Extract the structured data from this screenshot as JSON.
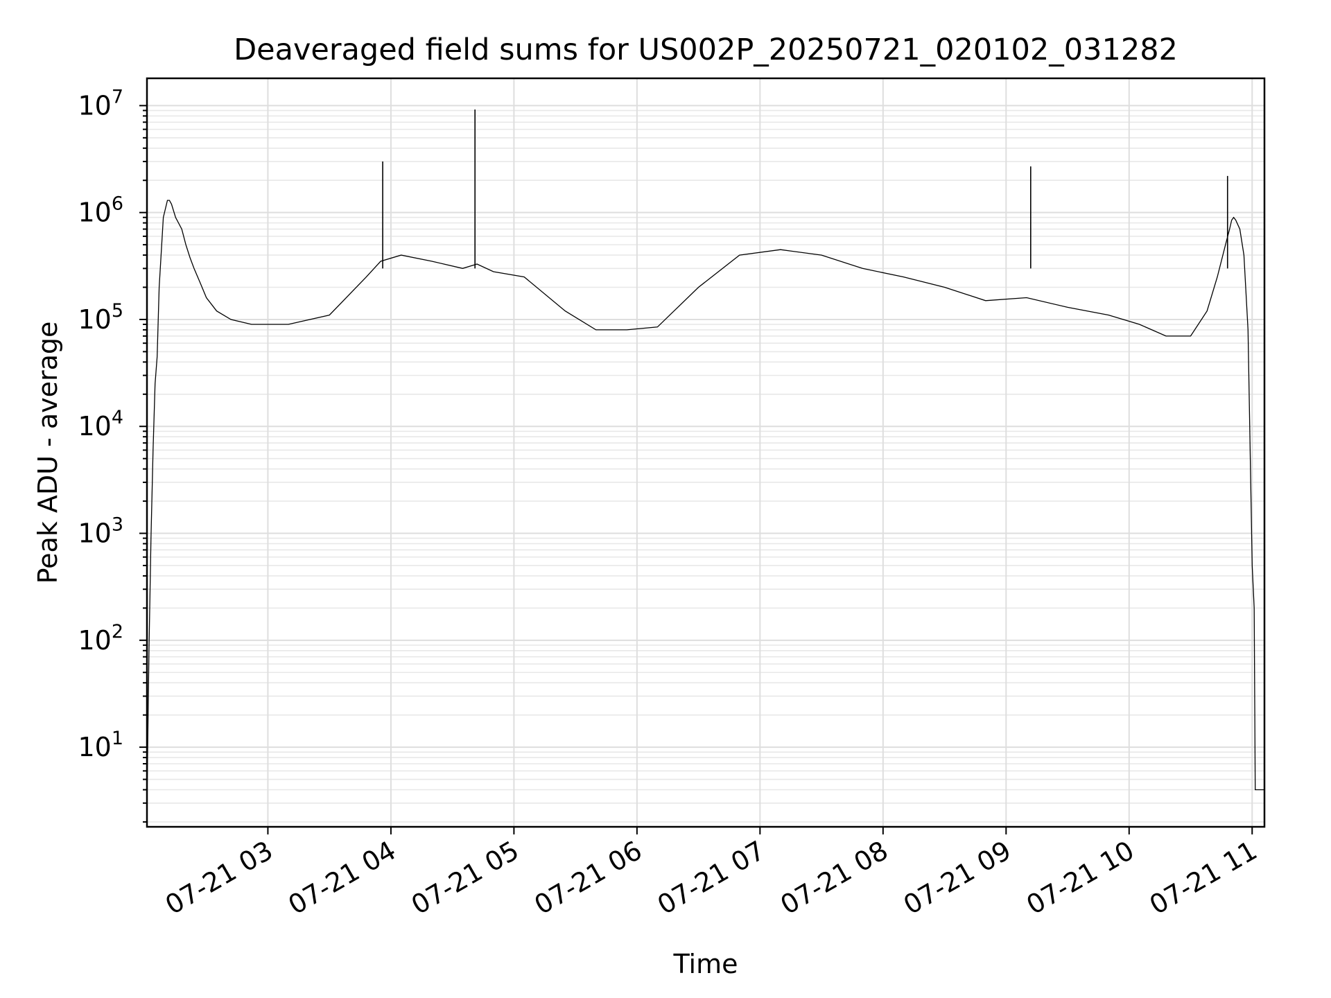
{
  "chart_data": {
    "type": "line",
    "title": "Deaveraged field sums for US002P_20250721_020102_031282",
    "xlabel": "Time",
    "ylabel": "Peak ADU - average",
    "y_scale": "log",
    "ylim": [
      1.8,
      18000000
    ],
    "xlim": [
      "2025-07-21T02:01:02",
      "2025-07-21T11:06:00"
    ],
    "grid": "both",
    "x_ticks": [
      {
        "t": "2025-07-21T03:00:00",
        "label": "07-21 03"
      },
      {
        "t": "2025-07-21T04:00:00",
        "label": "07-21 04"
      },
      {
        "t": "2025-07-21T05:00:00",
        "label": "07-21 05"
      },
      {
        "t": "2025-07-21T06:00:00",
        "label": "07-21 06"
      },
      {
        "t": "2025-07-21T07:00:00",
        "label": "07-21 07"
      },
      {
        "t": "2025-07-21T08:00:00",
        "label": "07-21 08"
      },
      {
        "t": "2025-07-21T09:00:00",
        "label": "07-21 09"
      },
      {
        "t": "2025-07-21T10:00:00",
        "label": "07-21 10"
      },
      {
        "t": "2025-07-21T11:00:00",
        "label": "07-21 11"
      }
    ],
    "y_ticks": [
      {
        "value": 10,
        "base": "10",
        "exp": "1"
      },
      {
        "value": 100,
        "base": "10",
        "exp": "2"
      },
      {
        "value": 1000,
        "base": "10",
        "exp": "3"
      },
      {
        "value": 10000,
        "base": "10",
        "exp": "4"
      },
      {
        "value": 100000,
        "base": "10",
        "exp": "5"
      },
      {
        "value": 1000000,
        "base": "10",
        "exp": "6"
      },
      {
        "value": 10000000,
        "base": "10",
        "exp": "7"
      }
    ],
    "series": [
      {
        "color": "#000000",
        "x": [
          "2025-07-21T02:01:02",
          "2025-07-21T02:02:00",
          "2025-07-21T02:03:00",
          "2025-07-21T02:04:00",
          "2025-07-21T02:05:00",
          "2025-07-21T02:06:00",
          "2025-07-21T02:07:00",
          "2025-07-21T02:09:00",
          "2025-07-21T02:11:00",
          "2025-07-21T02:12:00",
          "2025-07-21T02:13:00",
          "2025-07-21T02:15:00",
          "2025-07-21T02:18:00",
          "2025-07-21T02:20:00",
          "2025-07-21T02:22:00",
          "2025-07-21T02:24:00",
          "2025-07-21T02:27:00",
          "2025-07-21T02:30:00",
          "2025-07-21T02:35:00",
          "2025-07-21T02:42:00",
          "2025-07-21T02:52:00",
          "2025-07-21T03:10:00",
          "2025-07-21T03:30:00",
          "2025-07-21T03:48:00",
          "2025-07-21T03:55:00",
          "2025-07-21T04:05:00",
          "2025-07-21T04:20:00",
          "2025-07-21T04:35:00",
          "2025-07-21T04:42:00",
          "2025-07-21T04:50:00",
          "2025-07-21T05:05:00",
          "2025-07-21T05:25:00",
          "2025-07-21T05:40:00",
          "2025-07-21T05:55:00",
          "2025-07-21T06:10:00",
          "2025-07-21T06:30:00",
          "2025-07-21T06:50:00",
          "2025-07-21T07:10:00",
          "2025-07-21T07:30:00",
          "2025-07-21T07:50:00",
          "2025-07-21T08:10:00",
          "2025-07-21T08:30:00",
          "2025-07-21T08:50:00",
          "2025-07-21T09:10:00",
          "2025-07-21T09:30:00",
          "2025-07-21T09:50:00",
          "2025-07-21T10:05:00",
          "2025-07-21T10:18:00",
          "2025-07-21T10:30:00",
          "2025-07-21T10:38:00",
          "2025-07-21T10:43:00",
          "2025-07-21T10:47:00",
          "2025-07-21T10:49:00",
          "2025-07-21T10:50:00",
          "2025-07-21T10:51:00",
          "2025-07-21T10:52:00",
          "2025-07-21T10:54:00",
          "2025-07-21T10:56:00",
          "2025-07-21T10:58:00",
          "2025-07-21T11:00:00",
          "2025-07-21T11:01:00",
          "2025-07-21T11:01:30",
          "2025-07-21T11:02:00",
          "2025-07-21T11:02:30",
          "2025-07-21T11:03:00",
          "2025-07-21T11:06:00"
        ],
        "y": [
          3,
          80,
          900,
          6000,
          25000,
          45000,
          200000,
          900000,
          1300000,
          1300000,
          1200000,
          900000,
          700000,
          500000,
          380000,
          300000,
          220000,
          160000,
          120000,
          100000,
          90000,
          90000,
          110000,
          250000,
          350000,
          400000,
          350000,
          300000,
          330000,
          280000,
          250000,
          120000,
          80000,
          80000,
          85000,
          200000,
          400000,
          450000,
          400000,
          300000,
          250000,
          200000,
          150000,
          160000,
          130000,
          110000,
          90000,
          70000,
          70000,
          120000,
          250000,
          500000,
          700000,
          850000,
          900000,
          850000,
          700000,
          400000,
          80000,
          500,
          200,
          4,
          4,
          4,
          4,
          4
        ]
      }
    ],
    "spikes": [
      {
        "t": "2025-07-21T03:56:00",
        "y": 3000000
      },
      {
        "t": "2025-07-21T04:41:00",
        "y": 9200000
      },
      {
        "t": "2025-07-21T09:12:00",
        "y": 2700000
      },
      {
        "t": "2025-07-21T10:48:00",
        "y": 2200000
      }
    ]
  }
}
